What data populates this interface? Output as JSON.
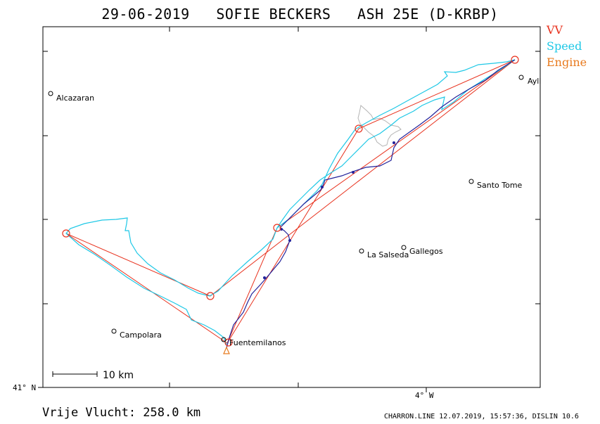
{
  "header": {
    "date": "29-06-2019",
    "pilot": "SOFIE BECKERS",
    "glider": "ASH 25E (D-KRBP)"
  },
  "legend": [
    {
      "label": "VV",
      "color": "#e8321e"
    },
    {
      "label": "Speed",
      "color": "#1ec8e6"
    },
    {
      "label": "Engine",
      "color": "#e87a1e"
    }
  ],
  "map": {
    "places": [
      {
        "name": "Alcazaran"
      },
      {
        "name": "Ayll"
      },
      {
        "name": "Santo Tome"
      },
      {
        "name": "La Salseda"
      },
      {
        "name": "Gallegos"
      },
      {
        "name": "Campolara"
      },
      {
        "name": "Fuentemilanos"
      }
    ],
    "lat_label": "41° N",
    "lon_label": "4° W",
    "scale_label": "10 km",
    "colors": {
      "task": "#e8321e",
      "track_speed": "#1ec8e6",
      "track_slow": "#23239b",
      "engine": "#e87a1e",
      "terrain": "#b4b4b4"
    }
  },
  "footer": {
    "distance_text": "Vrije Vlucht:  258.0 km",
    "credits": "CHARRON.LINE 12.07.2019, 15:57:36, DISLIN 10.6"
  }
}
